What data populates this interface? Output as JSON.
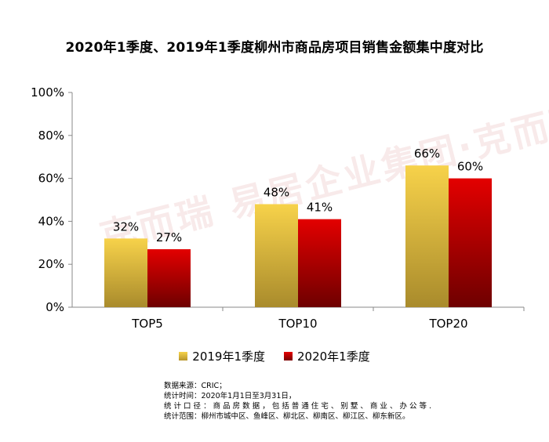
{
  "title": "2020年1季度、2019年1季度柳州市商品房项目销售金额集中度对比",
  "watermark": "克而瑞 易居企业集团·克而瑞",
  "notes": [
    "数据来源：CRIC；",
    "统计时间：2020年1月1日至3月31日，",
    "统 计 口 径 ： 商 品 房 数 据 ， 包 括 普 通 住 宅 、 别 墅 、 商 业 、 办 公 等 .",
    "统计范围：柳州市城中区、鱼峰区、柳北区、柳南区、柳江区、柳东新区。"
  ],
  "legend": {
    "s2019": "2019年1季度",
    "s2020": "2020年1季度"
  },
  "chart_data": {
    "type": "bar",
    "title": "2020年1季度、2019年1季度柳州市商品房项目销售金额集中度对比",
    "categories": [
      "TOP5",
      "TOP10",
      "TOP20"
    ],
    "series": [
      {
        "name": "2019年1季度",
        "values": [
          32,
          48,
          66
        ],
        "labels": [
          "32%",
          "48%",
          "66%"
        ]
      },
      {
        "name": "2020年1季度",
        "values": [
          27,
          41,
          60
        ],
        "labels": [
          "27%",
          "41%",
          "60%"
        ]
      }
    ],
    "yticks": [
      "0%",
      "20%",
      "40%",
      "60%",
      "80%",
      "100%"
    ],
    "ylim": [
      0,
      100
    ],
    "legend_position": "bottom",
    "colors": {
      "s2019": "#f2c53d",
      "s2020": "#d40000"
    }
  }
}
